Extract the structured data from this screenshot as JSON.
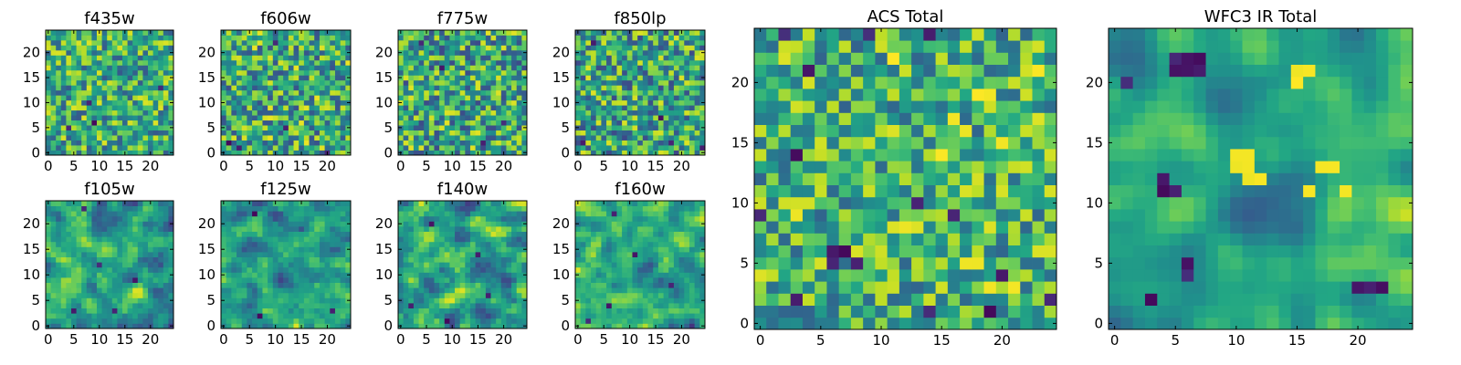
{
  "figure": {
    "background": "#ffffff",
    "colormap": "viridis"
  },
  "chart_data": [
    {
      "type": "heatmap",
      "title": "f435w",
      "shape": [
        25,
        25
      ],
      "xlim": [
        -0.5,
        24.5
      ],
      "ylim": [
        -0.5,
        24.5
      ],
      "xticks": [
        "0",
        "5",
        "10",
        "15",
        "20"
      ],
      "yticks": [
        "0",
        "5",
        "10",
        "15",
        "20"
      ],
      "pattern": "noise",
      "seed": 11,
      "smooth": 0,
      "amp_lo": 0.28,
      "amp_hi": 0.95,
      "dark_pixels": [
        [
          8,
          10
        ],
        [
          4,
          5
        ],
        [
          9,
          6
        ],
        [
          22,
          13
        ]
      ]
    },
    {
      "type": "heatmap",
      "title": "f606w",
      "shape": [
        25,
        25
      ],
      "xlim": [
        -0.5,
        24.5
      ],
      "ylim": [
        -0.5,
        24.5
      ],
      "xticks": [
        "0",
        "5",
        "10",
        "15",
        "20"
      ],
      "yticks": [
        "0",
        "5",
        "10",
        "15",
        "20"
      ],
      "pattern": "noise",
      "seed": 23,
      "smooth": 0,
      "amp_lo": 0.25,
      "amp_hi": 0.97,
      "dark_pixels": [
        [
          1,
          2
        ],
        [
          3,
          1
        ],
        [
          10,
          22
        ],
        [
          12,
          5
        ],
        [
          20,
          0
        ]
      ]
    },
    {
      "type": "heatmap",
      "title": "f775w",
      "shape": [
        25,
        25
      ],
      "xlim": [
        -0.5,
        24.5
      ],
      "ylim": [
        -0.5,
        24.5
      ],
      "xticks": [
        "0",
        "5",
        "10",
        "15",
        "20"
      ],
      "yticks": [
        "0",
        "5",
        "10",
        "15",
        "20"
      ],
      "pattern": "noise",
      "seed": 37,
      "smooth": 0,
      "amp_lo": 0.22,
      "amp_hi": 0.96,
      "dark_pixels": [
        [
          8,
          17
        ],
        [
          16,
          2
        ],
        [
          20,
          6
        ],
        [
          4,
          22
        ]
      ]
    },
    {
      "type": "heatmap",
      "title": "f850lp",
      "shape": [
        25,
        25
      ],
      "xlim": [
        -0.5,
        24.5
      ],
      "ylim": [
        -0.5,
        24.5
      ],
      "xticks": [
        "0",
        "5",
        "10",
        "15",
        "20"
      ],
      "yticks": [
        "0",
        "5",
        "10",
        "15",
        "20"
      ],
      "pattern": "noise",
      "seed": 41,
      "smooth": 0,
      "amp_lo": 0.22,
      "amp_hi": 0.95,
      "dark_pixels": [
        [
          3,
          22
        ],
        [
          16,
          7
        ],
        [
          24,
          1
        ],
        [
          18,
          2
        ],
        [
          1,
          2
        ]
      ]
    },
    {
      "type": "heatmap",
      "title": "f105w",
      "shape": [
        25,
        25
      ],
      "xlim": [
        -0.5,
        24.5
      ],
      "ylim": [
        -0.5,
        24.5
      ],
      "xticks": [
        "0",
        "5",
        "10",
        "15",
        "20"
      ],
      "yticks": [
        "0",
        "5",
        "10",
        "15",
        "20"
      ],
      "pattern": "smooth",
      "seed": 53,
      "smooth": 1,
      "amp_lo": 0.18,
      "amp_hi": 0.95,
      "dark_pixels": [
        [
          7,
          23
        ],
        [
          10,
          12
        ],
        [
          17,
          9
        ],
        [
          5,
          3
        ],
        [
          13,
          3
        ]
      ]
    },
    {
      "type": "heatmap",
      "title": "f125w",
      "shape": [
        25,
        25
      ],
      "xlim": [
        -0.5,
        24.5
      ],
      "ylim": [
        -0.5,
        24.5
      ],
      "xticks": [
        "0",
        "5",
        "10",
        "15",
        "20"
      ],
      "yticks": [
        "0",
        "5",
        "10",
        "15",
        "20"
      ],
      "pattern": "smooth",
      "seed": 61,
      "smooth": 1,
      "amp_lo": 0.2,
      "amp_hi": 0.95,
      "dark_pixels": [
        [
          6,
          22
        ],
        [
          7,
          2
        ],
        [
          21,
          3
        ]
      ]
    },
    {
      "type": "heatmap",
      "title": "f140w",
      "shape": [
        25,
        25
      ],
      "xlim": [
        -0.5,
        24.5
      ],
      "ylim": [
        -0.5,
        24.5
      ],
      "xticks": [
        "0",
        "5",
        "10",
        "15",
        "20"
      ],
      "yticks": [
        "0",
        "5",
        "10",
        "15",
        "20"
      ],
      "pattern": "smooth",
      "seed": 71,
      "smooth": 1,
      "amp_lo": 0.18,
      "amp_hi": 0.95,
      "dark_pixels": [
        [
          6,
          20
        ],
        [
          2,
          4
        ],
        [
          9,
          1
        ],
        [
          17,
          6
        ],
        [
          15,
          14
        ]
      ]
    },
    {
      "type": "heatmap",
      "title": "f160w",
      "shape": [
        25,
        25
      ],
      "xlim": [
        -0.5,
        24.5
      ],
      "ylim": [
        -0.5,
        24.5
      ],
      "xticks": [
        "0",
        "5",
        "10",
        "15",
        "20"
      ],
      "yticks": [
        "0",
        "5",
        "10",
        "15",
        "20"
      ],
      "pattern": "smooth",
      "seed": 83,
      "smooth": 1,
      "amp_lo": 0.15,
      "amp_hi": 0.95,
      "dark_pixels": [
        [
          7,
          22
        ],
        [
          6,
          4
        ],
        [
          2,
          1
        ],
        [
          11,
          14
        ],
        [
          18,
          8
        ]
      ]
    },
    {
      "type": "heatmap",
      "title": "ACS Total",
      "shape": [
        25,
        25
      ],
      "xlim": [
        -0.5,
        24.5
      ],
      "ylim": [
        -0.5,
        24.5
      ],
      "xticks": [
        "0",
        "5",
        "10",
        "15",
        "20"
      ],
      "yticks": [
        "0",
        "5",
        "10",
        "15",
        "20"
      ],
      "pattern": "noise",
      "seed": 97,
      "smooth": 0,
      "amp_lo": 0.32,
      "amp_hi": 0.95,
      "dark_pixels": [
        [
          2,
          24
        ],
        [
          4,
          21
        ],
        [
          9,
          24
        ],
        [
          14,
          24
        ],
        [
          3,
          14
        ],
        [
          0,
          9
        ],
        [
          6,
          6
        ],
        [
          6,
          5
        ],
        [
          8,
          5
        ],
        [
          7,
          6
        ],
        [
          20,
          4
        ],
        [
          3,
          2
        ],
        [
          14,
          1
        ],
        [
          19,
          1
        ],
        [
          24,
          2
        ],
        [
          13,
          10
        ],
        [
          16,
          9
        ]
      ],
      "bright_pixels": [
        [
          18,
          19
        ],
        [
          19,
          19
        ],
        [
          16,
          17
        ],
        [
          17,
          16
        ],
        [
          20,
          15
        ],
        [
          15,
          14
        ],
        [
          3,
          9
        ],
        [
          12,
          8
        ],
        [
          17,
          5
        ],
        [
          18,
          5
        ],
        [
          19,
          3
        ],
        [
          21,
          3
        ],
        [
          23,
          21
        ],
        [
          11,
          22
        ]
      ]
    },
    {
      "type": "heatmap",
      "title": "WFC3 IR Total",
      "shape": [
        25,
        25
      ],
      "xlim": [
        -0.5,
        24.5
      ],
      "ylim": [
        -0.5,
        24.5
      ],
      "xticks": [
        "0",
        "5",
        "10",
        "15",
        "20"
      ],
      "yticks": [
        "0",
        "5",
        "10",
        "15",
        "20"
      ],
      "pattern": "smooth",
      "seed": 109,
      "smooth": 2,
      "amp_lo": 0.3,
      "amp_hi": 0.92,
      "dark_pixels": [
        [
          6,
          22
        ],
        [
          7,
          22
        ],
        [
          5,
          22
        ],
        [
          5,
          21
        ],
        [
          6,
          21
        ],
        [
          7,
          21
        ],
        [
          1,
          20
        ],
        [
          4,
          11
        ],
        [
          5,
          11
        ],
        [
          4,
          12
        ],
        [
          6,
          4
        ],
        [
          6,
          5
        ],
        [
          20,
          3
        ],
        [
          21,
          3
        ],
        [
          22,
          3
        ],
        [
          3,
          2
        ]
      ],
      "bright_pixels": [
        [
          10,
          14
        ],
        [
          11,
          14
        ],
        [
          10,
          13
        ],
        [
          11,
          13
        ],
        [
          11,
          12
        ],
        [
          12,
          12
        ],
        [
          15,
          21
        ],
        [
          16,
          21
        ],
        [
          15,
          20
        ],
        [
          17,
          13
        ],
        [
          18,
          13
        ],
        [
          16,
          11
        ],
        [
          19,
          11
        ]
      ]
    }
  ]
}
